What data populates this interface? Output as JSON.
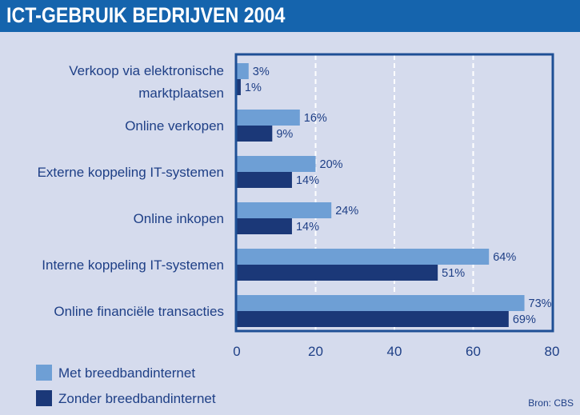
{
  "header": {
    "title": "ICT-GEBRUIK BEDRIJVEN 2004"
  },
  "source": "Bron: CBS",
  "colors": {
    "title_bar": "#1564ad",
    "background": "#d5dbed",
    "series_light": "#6e9fd5",
    "series_dark": "#1b3878",
    "frame": "#1e4f95",
    "text": "#1e3f86"
  },
  "chart_data": {
    "type": "bar",
    "orientation": "horizontal",
    "categories": [
      [
        "Verkoop via elektronische",
        "marktplaatsen"
      ],
      [
        "Online verkopen"
      ],
      [
        "Externe koppeling IT-systemen"
      ],
      [
        "Online inkopen"
      ],
      [
        "Interne koppeling IT-systemen"
      ],
      [
        "Online financiële transacties"
      ]
    ],
    "series": [
      {
        "name": "Met breedbandinternet",
        "values": [
          3,
          16,
          20,
          24,
          64,
          73
        ],
        "labels": [
          "3%",
          "16%",
          "20%",
          "24%",
          "64%",
          "73%"
        ]
      },
      {
        "name": "Zonder breedbandinternet",
        "values": [
          1,
          9,
          14,
          14,
          51,
          69
        ],
        "labels": [
          "1%",
          "9%",
          "14%",
          "14%",
          "51%",
          "69%"
        ]
      }
    ],
    "xlim": [
      0,
      80
    ],
    "xticks": [
      "0",
      "20",
      "40",
      "60",
      "80"
    ],
    "grid": "vertical dashed",
    "legend_position": "bottom-left"
  }
}
